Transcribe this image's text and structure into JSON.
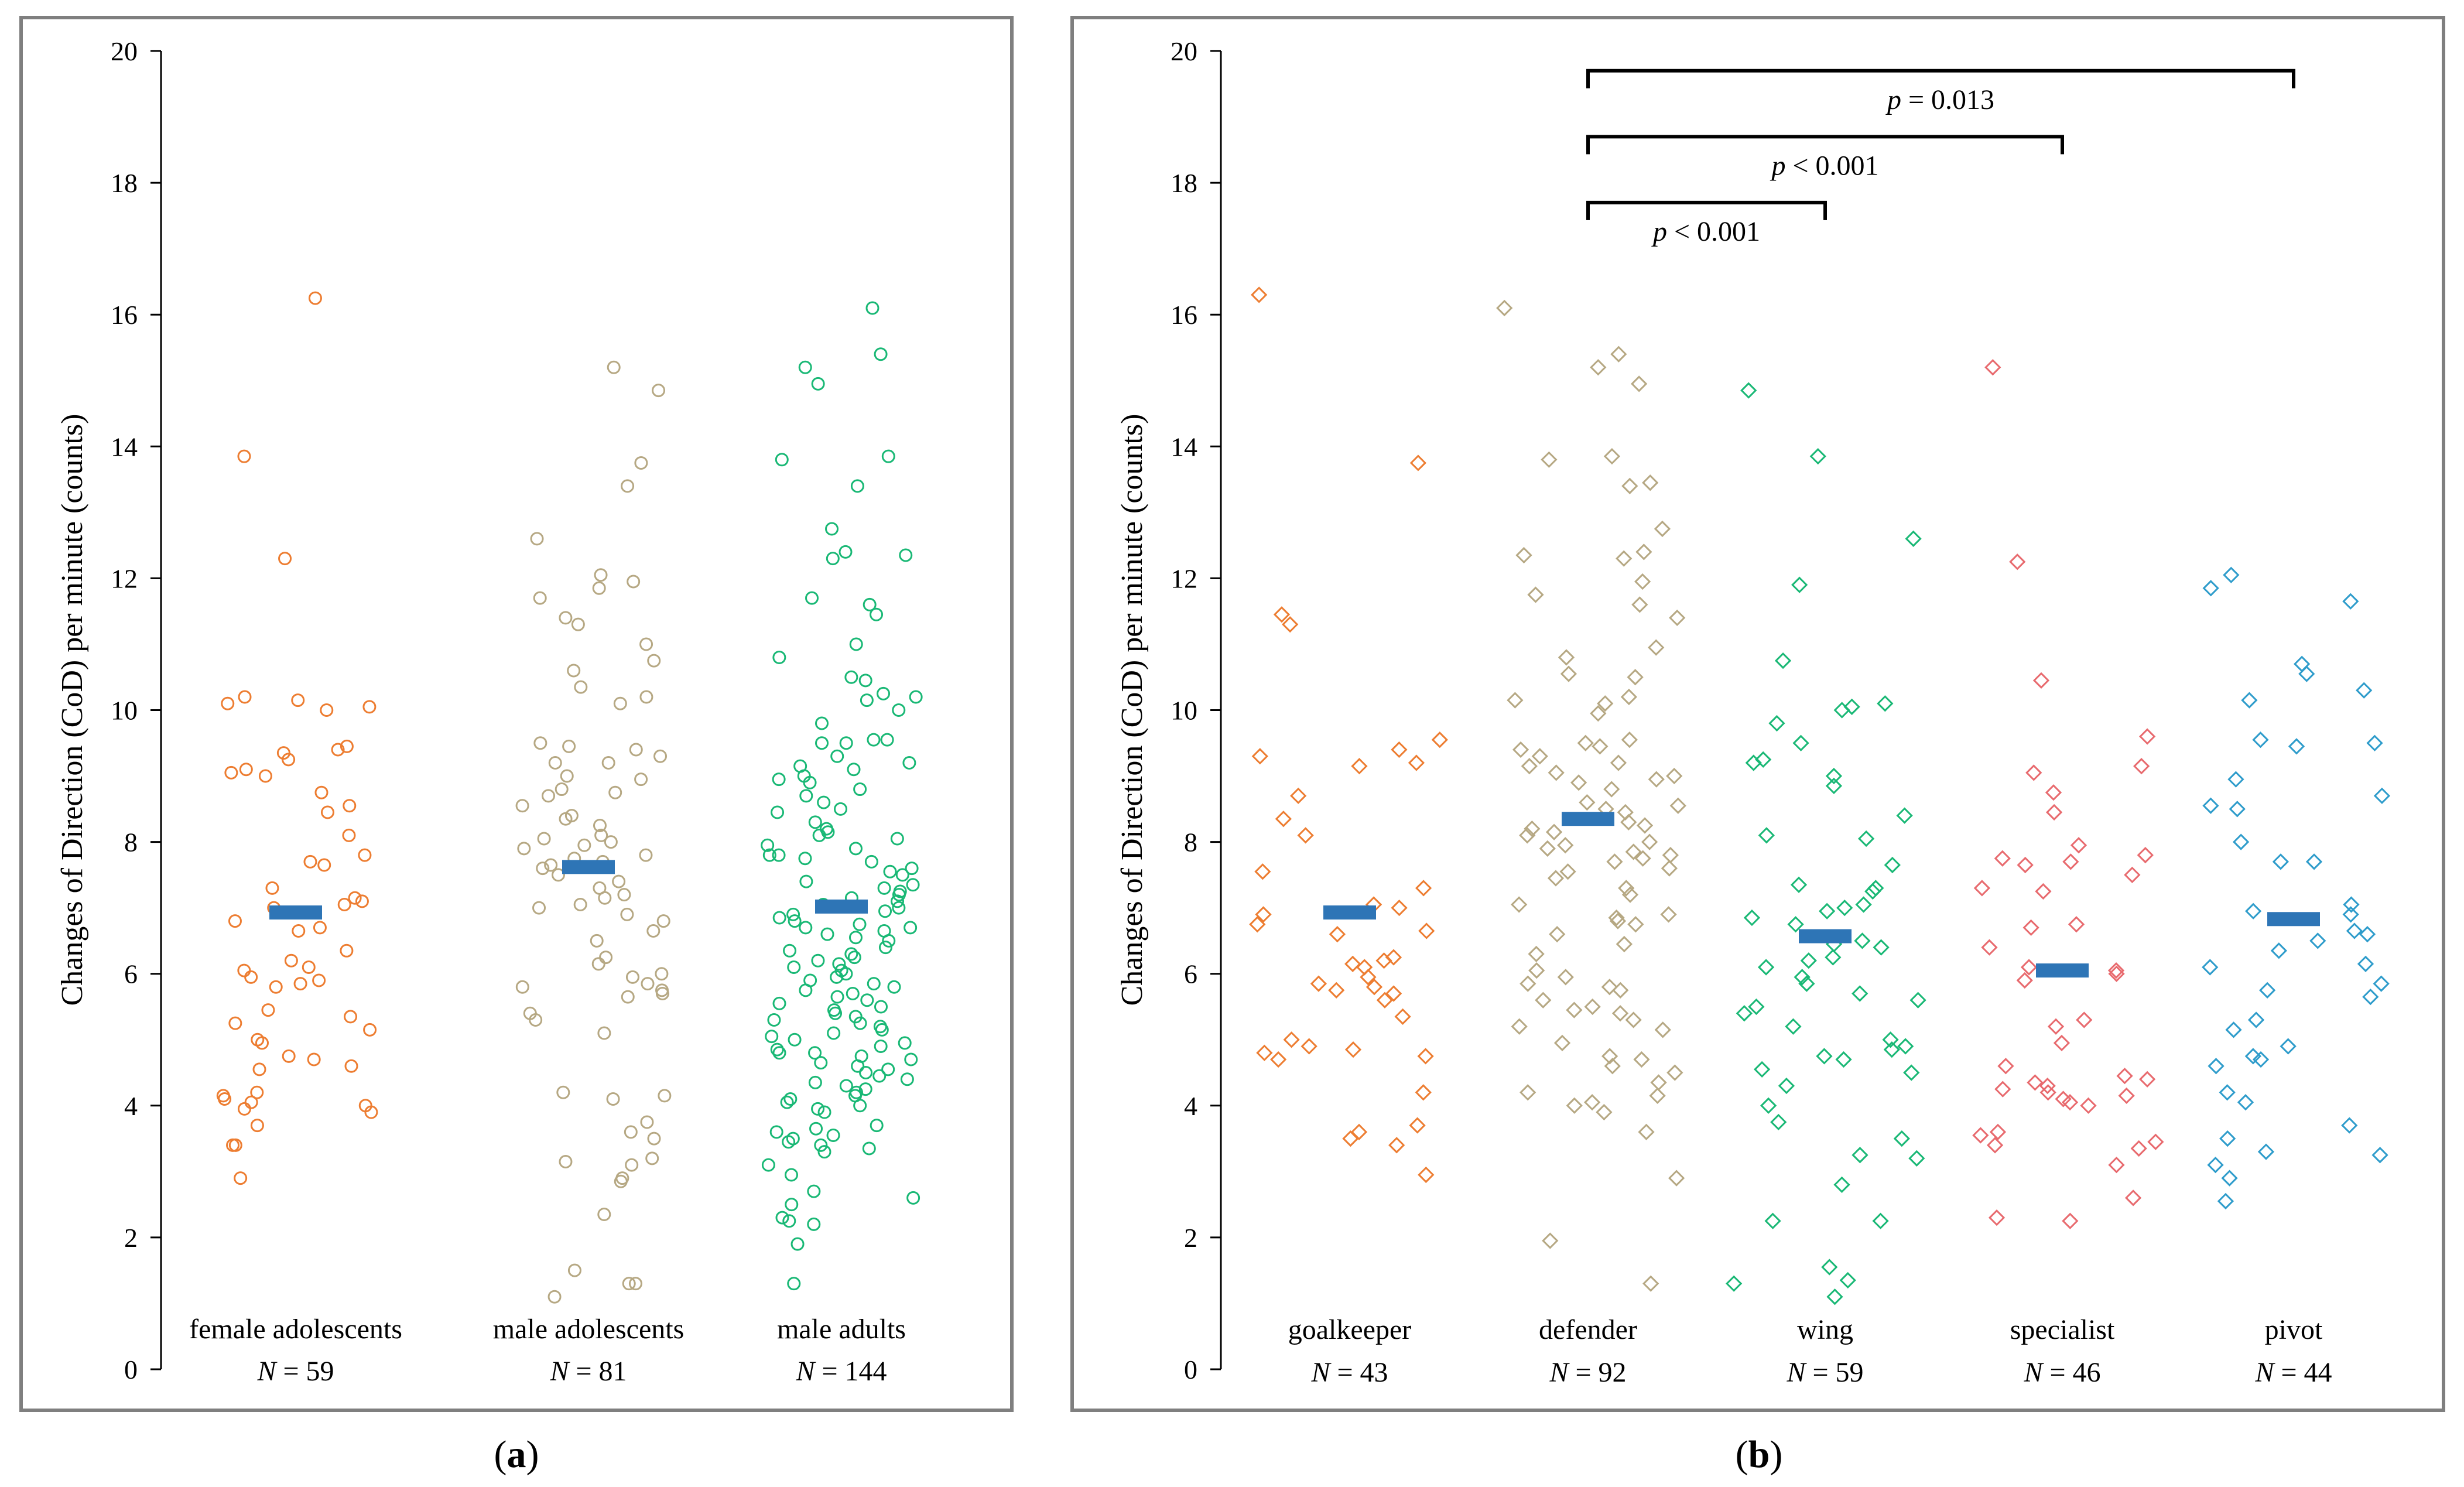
{
  "panels": [
    {
      "id": "a",
      "caption_label": "a",
      "chart_data": {
        "type": "scatter",
        "marker": "circle",
        "ylabel": "Changes of Direction (CoD) per minute (counts)",
        "ylim": [
          0,
          20
        ],
        "yticks": [
          0,
          2,
          4,
          6,
          8,
          10,
          12,
          14,
          16,
          18,
          20
        ],
        "grid": false,
        "categories": [
          {
            "name": "female adolescents",
            "n_label": "N = 59",
            "color": "#ED7D31",
            "mean": 6.93,
            "values": [
              16.25,
              13.85,
              12.3,
              10.2,
              10.15,
              10.1,
              10.05,
              10.0,
              9.45,
              9.4,
              9.35,
              9.25,
              9.1,
              9.05,
              9.0,
              8.75,
              8.55,
              8.45,
              8.1,
              7.8,
              7.7,
              7.65,
              7.3,
              7.15,
              7.1,
              7.05,
              6.8,
              6.7,
              6.35,
              6.2,
              6.1,
              6.05,
              5.95,
              5.9,
              5.85,
              5.8,
              5.45,
              5.35,
              5.25,
              5.15,
              5.0,
              4.95,
              4.75,
              4.7,
              4.6,
              4.55,
              4.2,
              4.15,
              4.1,
              4.05,
              4.0,
              3.95,
              3.9,
              3.7,
              3.4,
              3.4,
              2.9,
              7.0,
              6.65
            ]
          },
          {
            "name": "male adolescents",
            "n_label": "N = 81",
            "color": "#B6A883",
            "mean": 7.62,
            "values": [
              15.2,
              14.85,
              13.75,
              13.4,
              12.6,
              12.05,
              11.95,
              11.85,
              11.7,
              11.4,
              11.3,
              11.0,
              10.75,
              10.6,
              10.35,
              10.2,
              10.1,
              9.5,
              9.4,
              9.3,
              9.2,
              9.2,
              9.0,
              8.95,
              8.8,
              8.75,
              8.7,
              8.55,
              8.4,
              8.35,
              8.1,
              8.05,
              8.0,
              7.95,
              7.9,
              7.8,
              7.75,
              7.7,
              7.65,
              7.6,
              7.5,
              7.3,
              7.2,
              7.15,
              7.05,
              7.0,
              6.9,
              6.8,
              6.65,
              6.5,
              6.25,
              6.15,
              5.85,
              5.8,
              5.75,
              5.7,
              5.65,
              5.4,
              5.3,
              5.1,
              4.2,
              4.15,
              4.1,
              3.75,
              3.6,
              3.5,
              3.2,
              3.15,
              3.1,
              2.9,
              2.85,
              2.35,
              1.5,
              1.3,
              1.3,
              1.1,
              9.45,
              8.25,
              7.4,
              6.0,
              5.95
            ]
          },
          {
            "name": "male adults",
            "n_label": "N = 144",
            "color": "#19B875",
            "mean": 7.02,
            "values": [
              16.1,
              15.4,
              15.2,
              14.95,
              13.85,
              13.8,
              13.4,
              12.75,
              12.4,
              12.35,
              12.3,
              11.7,
              11.6,
              11.45,
              11.0,
              10.8,
              10.5,
              10.45,
              10.25,
              10.2,
              10.15,
              10.0,
              9.8,
              9.55,
              9.55,
              9.5,
              9.5,
              9.3,
              9.2,
              9.15,
              9.1,
              9.0,
              8.95,
              8.9,
              8.8,
              8.6,
              8.5,
              8.3,
              8.2,
              8.15,
              8.1,
              8.05,
              7.95,
              7.9,
              7.8,
              7.8,
              7.75,
              7.6,
              7.55,
              7.5,
              7.4,
              7.35,
              7.3,
              7.25,
              7.2,
              7.1,
              7.05,
              7.0,
              6.95,
              6.9,
              6.85,
              6.8,
              6.75,
              6.7,
              6.7,
              6.65,
              6.6,
              6.55,
              6.5,
              6.4,
              6.35,
              6.3,
              6.25,
              6.2,
              6.15,
              6.1,
              6.05,
              6.0,
              5.95,
              5.9,
              5.85,
              5.8,
              5.75,
              5.7,
              5.65,
              5.6,
              5.55,
              5.5,
              5.45,
              5.4,
              5.35,
              5.3,
              5.25,
              5.2,
              5.15,
              5.1,
              5.05,
              5.0,
              4.95,
              4.9,
              4.85,
              4.8,
              4.8,
              4.75,
              4.7,
              4.65,
              4.6,
              4.55,
              4.5,
              4.45,
              4.4,
              4.35,
              4.3,
              4.25,
              4.2,
              4.15,
              4.1,
              4.05,
              4.0,
              3.95,
              3.9,
              3.7,
              3.65,
              3.6,
              3.55,
              3.5,
              3.45,
              3.4,
              3.35,
              3.3,
              3.1,
              2.95,
              2.7,
              2.6,
              2.5,
              2.3,
              2.25,
              2.2,
              1.9,
              1.3,
              8.7,
              8.45,
              7.7,
              7.15
            ]
          }
        ]
      }
    },
    {
      "id": "b",
      "caption_label": "b",
      "chart_data": {
        "type": "scatter",
        "marker": "diamond",
        "ylabel": "Changes of Direction (CoD) per minute (counts)",
        "ylim": [
          0,
          20
        ],
        "yticks": [
          0,
          2,
          4,
          6,
          8,
          10,
          12,
          14,
          16,
          18,
          20
        ],
        "grid": false,
        "categories": [
          {
            "name": "goalkeeper",
            "n_label": "N = 43",
            "color": "#ED7D31",
            "mean": 6.93,
            "values": [
              16.3,
              13.75,
              11.45,
              11.3,
              9.55,
              9.4,
              9.3,
              9.2,
              9.15,
              8.7,
              8.35,
              8.1,
              7.55,
              7.3,
              7.05,
              7.0,
              6.75,
              6.65,
              6.6,
              6.25,
              6.2,
              6.15,
              6.1,
              5.95,
              5.85,
              5.8,
              5.75,
              5.7,
              5.6,
              5.35,
              5.0,
              4.9,
              4.85,
              4.8,
              4.75,
              4.7,
              4.2,
              3.7,
              3.6,
              3.5,
              3.4,
              2.95,
              6.9
            ]
          },
          {
            "name": "defender",
            "n_label": "N = 92",
            "color": "#B6A883",
            "mean": 8.35,
            "values": [
              16.1,
              15.4,
              15.2,
              14.95,
              13.85,
              13.8,
              13.45,
              13.4,
              12.75,
              12.4,
              12.35,
              12.3,
              11.95,
              11.75,
              11.6,
              11.4,
              10.95,
              10.8,
              10.55,
              10.5,
              10.2,
              10.15,
              10.1,
              9.95,
              9.55,
              9.5,
              9.45,
              9.4,
              9.3,
              9.2,
              9.15,
              9.05,
              9.0,
              8.95,
              8.9,
              8.8,
              8.55,
              8.5,
              8.45,
              8.3,
              8.25,
              8.2,
              8.15,
              8.1,
              7.95,
              7.9,
              7.85,
              7.8,
              7.75,
              7.7,
              7.6,
              7.55,
              7.45,
              7.3,
              7.2,
              7.05,
              6.9,
              6.85,
              6.8,
              6.75,
              6.6,
              6.45,
              6.3,
              6.05,
              5.95,
              5.85,
              5.8,
              5.75,
              5.6,
              5.5,
              5.45,
              5.4,
              5.3,
              5.2,
              5.15,
              4.95,
              4.75,
              4.7,
              4.6,
              4.5,
              4.35,
              4.2,
              4.15,
              4.05,
              4.0,
              3.9,
              3.6,
              2.9,
              1.95,
              1.3,
              8.6,
              8.0
            ]
          },
          {
            "name": "wing",
            "n_label": "N = 59",
            "color": "#19B875",
            "mean": 6.57,
            "values": [
              14.85,
              13.85,
              12.6,
              11.9,
              10.75,
              10.1,
              10.05,
              10.0,
              9.8,
              9.5,
              9.25,
              9.2,
              9.0,
              8.85,
              8.4,
              8.1,
              8.05,
              7.65,
              7.35,
              7.3,
              7.25,
              7.05,
              7.0,
              6.95,
              6.85,
              6.75,
              6.5,
              6.45,
              6.4,
              6.25,
              6.1,
              5.95,
              5.85,
              5.7,
              5.6,
              5.5,
              5.4,
              5.2,
              5.0,
              4.9,
              4.85,
              4.75,
              4.7,
              4.55,
              4.5,
              4.0,
              3.75,
              3.5,
              3.25,
              3.2,
              2.8,
              2.25,
              2.25,
              1.55,
              1.35,
              1.3,
              1.1,
              6.2,
              4.3
            ]
          },
          {
            "name": "specialist",
            "n_label": "N = 46",
            "color": "#E86A6E",
            "mean": 6.05,
            "values": [
              15.2,
              12.25,
              10.45,
              9.6,
              9.15,
              9.05,
              8.75,
              8.45,
              7.95,
              7.8,
              7.75,
              7.7,
              7.65,
              7.5,
              7.3,
              7.25,
              6.75,
              6.7,
              6.1,
              6.05,
              6.0,
              5.9,
              5.3,
              5.2,
              4.95,
              4.6,
              4.45,
              4.4,
              4.35,
              4.3,
              4.25,
              4.2,
              4.15,
              4.1,
              4.05,
              4.0,
              3.6,
              3.55,
              3.45,
              3.4,
              3.35,
              3.1,
              2.6,
              2.3,
              2.25,
              6.4
            ]
          },
          {
            "name": "pivot",
            "n_label": "N = 44",
            "color": "#2E9CCB",
            "mean": 6.83,
            "values": [
              12.05,
              11.85,
              11.65,
              10.7,
              10.55,
              10.3,
              10.15,
              9.55,
              9.5,
              9.45,
              8.95,
              8.7,
              8.55,
              8.5,
              8.0,
              7.7,
              7.7,
              7.05,
              6.95,
              6.9,
              6.65,
              6.6,
              6.5,
              6.35,
              6.15,
              6.1,
              5.85,
              5.75,
              5.65,
              5.3,
              5.15,
              4.9,
              4.75,
              4.7,
              4.6,
              4.2,
              4.05,
              3.7,
              3.5,
              3.3,
              3.25,
              3.1,
              2.9,
              2.55
            ]
          }
        ],
        "brackets": [
          {
            "from": "defender",
            "to": "pivot",
            "y": 19.7,
            "p_symbol": "p",
            "p_rest": " = 0.013"
          },
          {
            "from": "defender",
            "to": "specialist",
            "y": 18.7,
            "p_symbol": "p",
            "p_rest": " < 0.001"
          },
          {
            "from": "defender",
            "to": "wing",
            "y": 17.7,
            "p_symbol": "p",
            "p_rest": " < 0.001"
          }
        ]
      }
    }
  ]
}
